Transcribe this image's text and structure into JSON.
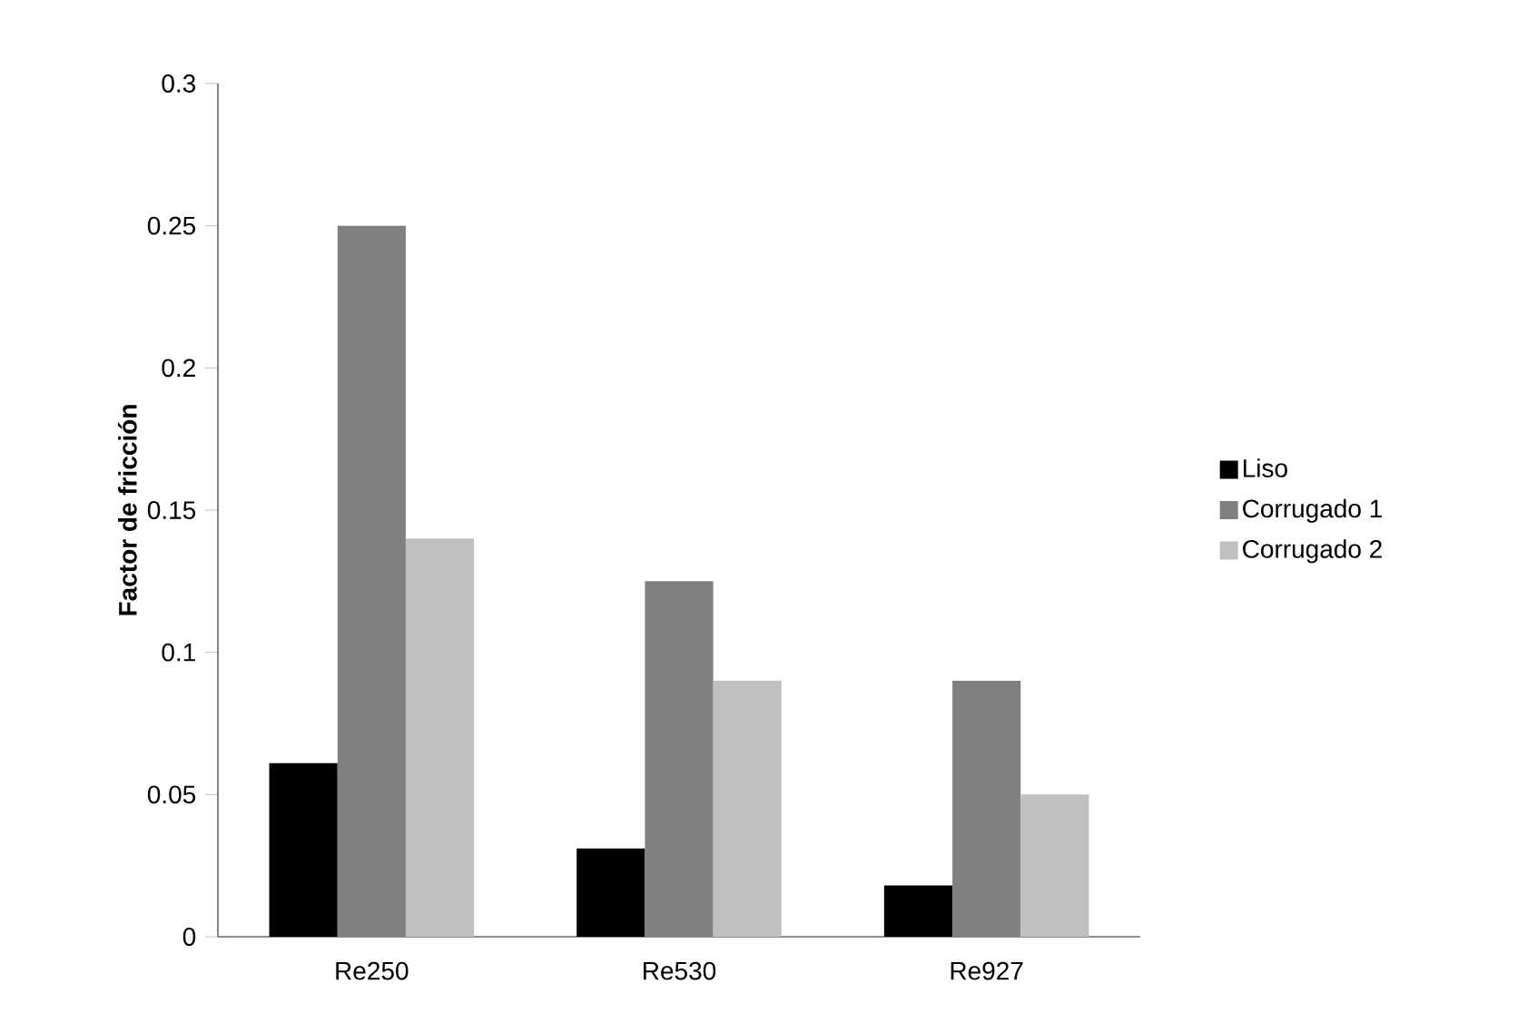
{
  "chart_data": {
    "type": "bar",
    "ylabel": "Factor de fricción",
    "categories": [
      "Re250",
      "Re530",
      "Re927"
    ],
    "series": [
      {
        "name": "Liso",
        "color": "#000000",
        "values": [
          0.061,
          0.031,
          0.018
        ]
      },
      {
        "name": "Corrugado 1",
        "color": "#808080",
        "values": [
          0.25,
          0.125,
          0.09
        ]
      },
      {
        "name": "Corrugado 2",
        "color": "#c0c0c0",
        "values": [
          0.14,
          0.09,
          0.05
        ]
      }
    ],
    "ylim": [
      0,
      0.3
    ],
    "yticks": [
      0,
      0.05,
      0.1,
      0.15,
      0.2,
      0.25,
      0.3
    ],
    "grid": false,
    "legend": "right"
  }
}
